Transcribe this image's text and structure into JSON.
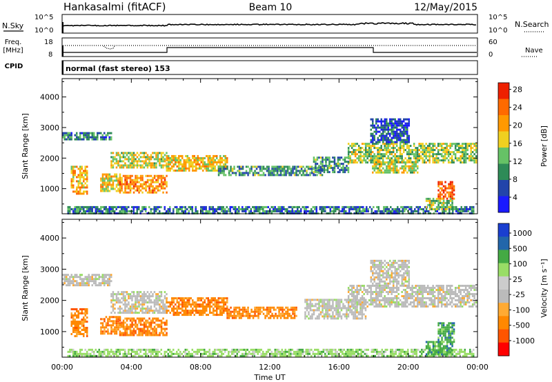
{
  "header": {
    "station": "Hankasalmi (fitACF)",
    "beam": "Beam 10",
    "date": "12/May/2015"
  },
  "noise_panel": {
    "left_label": "N.Sky",
    "right_label": "N.Search",
    "left_ticks": [
      "10^5",
      "10^0"
    ],
    "right_ticks": [
      "10^5",
      "10^0"
    ]
  },
  "freq_panel": {
    "label_line1": "Freq.",
    "label_line2": "[MHz]",
    "left_ticks": [
      "18",
      "8"
    ],
    "right_label": "Nave",
    "right_ticks": [
      "60",
      "0"
    ]
  },
  "cpid_panel": {
    "label": "CPID",
    "text": "normal (fast stereo) 153"
  },
  "x_axis": {
    "ticks": [
      "00:00",
      "04:00",
      "08:00",
      "12:00",
      "16:00",
      "20:00",
      "00:00"
    ],
    "title": "Time UT"
  },
  "colors": {
    "power": [
      "#1a1aff",
      "#2244aa",
      "#2e8b57",
      "#66c266",
      "#f0d020",
      "#ff9900",
      "#ff6a00",
      "#ee2000"
    ],
    "velocity": [
      "#ff0000",
      "#ff5500",
      "#ff8800",
      "#ffaa33",
      "#bbbbbb",
      "#cccccc",
      "#99dd66",
      "#44aa44",
      "#2266aa",
      "#1a3fd0"
    ]
  },
  "chart_data": [
    {
      "type": "heatmap",
      "title": "Power",
      "ylabel": "Slant Range [km]",
      "xlabel": "Time UT",
      "xlim": [
        0,
        24
      ],
      "ylim": [
        180,
        4600
      ],
      "yticks": [
        "1000",
        "2000",
        "3000",
        "4000"
      ],
      "colorbar": {
        "label": "Power [dB]",
        "ticks": [
          "4",
          "8",
          "12",
          "16",
          "20",
          "24",
          "28"
        ],
        "range": [
          0,
          30
        ]
      },
      "regions": [
        {
          "t0": 0.3,
          "t1": 23.8,
          "r0": 200,
          "r1": 430,
          "level": 8
        },
        {
          "t0": 0.0,
          "t1": 2.8,
          "r0": 2600,
          "r1": 2850,
          "level": 8
        },
        {
          "t0": 0.5,
          "t1": 1.4,
          "r0": 850,
          "r1": 1750,
          "level": 20
        },
        {
          "t0": 2.2,
          "t1": 3.3,
          "r0": 950,
          "r1": 1500,
          "level": 18
        },
        {
          "t0": 3.3,
          "t1": 6.0,
          "r0": 900,
          "r1": 1450,
          "level": 22
        },
        {
          "t0": 2.8,
          "t1": 6.0,
          "r0": 1700,
          "r1": 2200,
          "level": 16
        },
        {
          "t0": 6.0,
          "t1": 9.5,
          "r0": 1600,
          "r1": 2100,
          "level": 18
        },
        {
          "t0": 9.0,
          "t1": 15.0,
          "r0": 1450,
          "r1": 1750,
          "level": 10
        },
        {
          "t0": 14.5,
          "t1": 16.5,
          "r0": 1550,
          "r1": 2050,
          "level": 10
        },
        {
          "t0": 16.5,
          "t1": 23.9,
          "r0": 1850,
          "r1": 2500,
          "level": 14
        },
        {
          "t0": 17.9,
          "t1": 20.5,
          "r0": 1500,
          "r1": 1900,
          "level": 16
        },
        {
          "t0": 17.8,
          "t1": 20.0,
          "r0": 2500,
          "r1": 3300,
          "level": 6
        },
        {
          "t0": 21.7,
          "t1": 22.6,
          "r0": 700,
          "r1": 1250,
          "level": 26
        },
        {
          "t0": 21.0,
          "t1": 22.5,
          "r0": 300,
          "r1": 700,
          "level": 14
        }
      ]
    },
    {
      "type": "heatmap",
      "title": "Velocity",
      "ylabel": "Slant Range [km]",
      "xlabel": "Time UT",
      "xlim": [
        0,
        24
      ],
      "ylim": [
        180,
        4600
      ],
      "yticks": [
        "1000",
        "2000",
        "3000",
        "4000"
      ],
      "colorbar": {
        "label": "Velocity [m s⁻¹]",
        "ticks": [
          "1000",
          "500",
          "100",
          "25",
          "-25",
          "-100",
          "-500",
          "-1000"
        ]
      },
      "regions": [
        {
          "t0": 0.3,
          "t1": 23.8,
          "r0": 200,
          "r1": 450,
          "level": 100
        },
        {
          "t0": 0.0,
          "t1": 2.8,
          "r0": 2500,
          "r1": 2850,
          "level": 0
        },
        {
          "t0": 0.5,
          "t1": 1.4,
          "r0": 850,
          "r1": 1750,
          "level": -300
        },
        {
          "t0": 2.2,
          "t1": 3.3,
          "r0": 950,
          "r1": 1500,
          "level": -300
        },
        {
          "t0": 3.3,
          "t1": 6.0,
          "r0": 900,
          "r1": 1450,
          "level": -200
        },
        {
          "t0": 2.8,
          "t1": 6.0,
          "r0": 1600,
          "r1": 2300,
          "level": 0
        },
        {
          "t0": 6.0,
          "t1": 9.5,
          "r0": 1550,
          "r1": 2100,
          "level": -300
        },
        {
          "t0": 9.5,
          "t1": 13.5,
          "r0": 1450,
          "r1": 1800,
          "level": -200
        },
        {
          "t0": 14.0,
          "t1": 17.5,
          "r0": 1450,
          "r1": 2050,
          "level": 0
        },
        {
          "t0": 16.5,
          "t1": 23.9,
          "r0": 1800,
          "r1": 2500,
          "level": 0
        },
        {
          "t0": 17.8,
          "t1": 20.0,
          "r0": 2500,
          "r1": 3300,
          "level": 0
        },
        {
          "t0": 21.7,
          "t1": 22.6,
          "r0": 700,
          "r1": 1300,
          "level": 200
        },
        {
          "t0": 21.0,
          "t1": 22.5,
          "r0": 300,
          "r1": 700,
          "level": 300
        }
      ]
    }
  ]
}
